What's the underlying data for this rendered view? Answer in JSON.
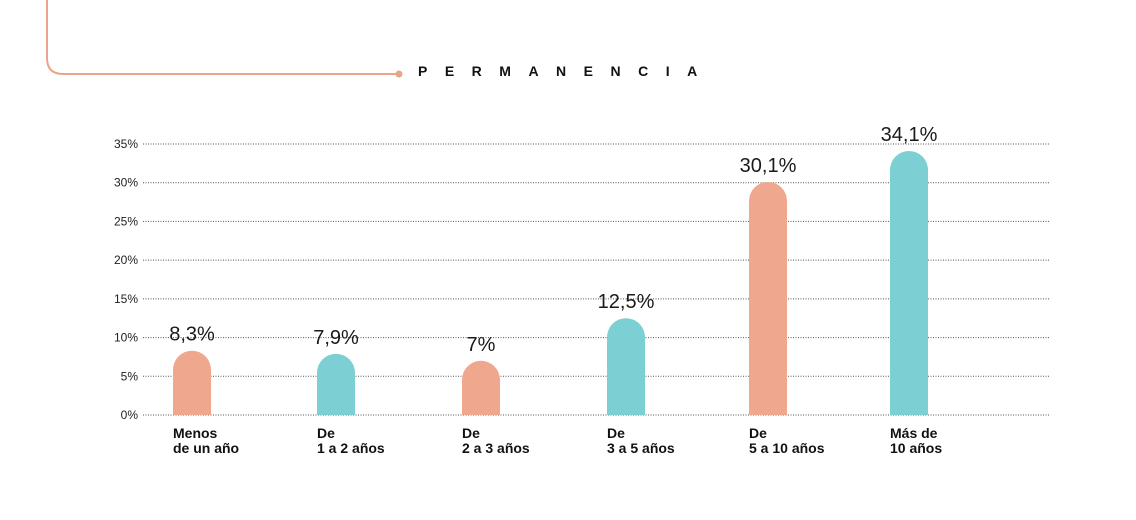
{
  "header": {
    "title": "PERMANENCIA",
    "accent_color": "#e8a58c"
  },
  "chart_data": {
    "type": "bar",
    "categories": [
      [
        "Menos",
        "de un año"
      ],
      [
        "De",
        "1 a 2 años"
      ],
      [
        "De",
        "2 a 3 años"
      ],
      [
        "De",
        "3 a 5 años"
      ],
      [
        "De",
        "5 a 10 años"
      ],
      [
        "Más de",
        "10 años"
      ]
    ],
    "values": [
      8.3,
      7.9,
      7,
      12.5,
      30.1,
      34.1
    ],
    "value_labels": [
      "8,3%",
      "7,9%",
      "7%",
      "12,5%",
      "30,1%",
      "34,1%"
    ],
    "bar_colors": [
      "#efa88e",
      "#7ccfd3",
      "#efa88e",
      "#7ccfd3",
      "#efa88e",
      "#7ccfd3"
    ],
    "yticks": [
      "0%",
      "5%",
      "10%",
      "15%",
      "20%",
      "25%",
      "30%",
      "35%"
    ],
    "ylim": [
      0,
      35
    ],
    "grid": true
  }
}
